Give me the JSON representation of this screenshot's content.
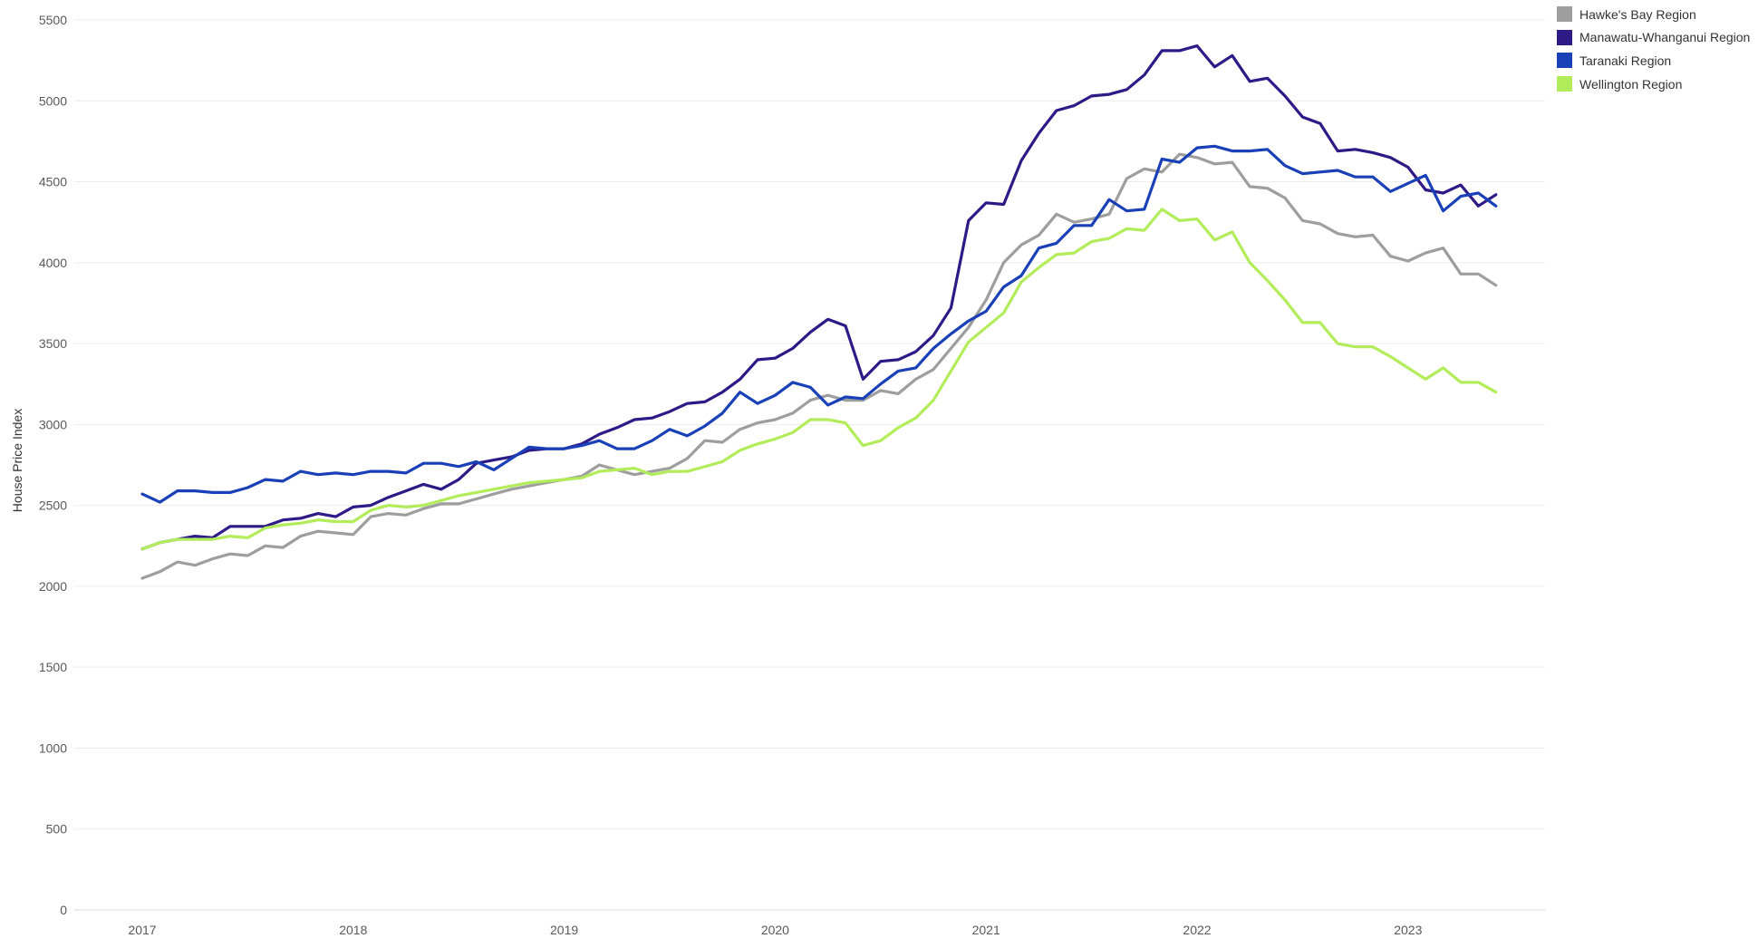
{
  "chart_data": {
    "type": "line",
    "ylabel": "House Price Index",
    "ylim": [
      0,
      5500
    ],
    "y_ticks": [
      0,
      500,
      1000,
      1500,
      2000,
      2500,
      3000,
      3500,
      4000,
      4500,
      5000,
      5500
    ],
    "x_ticks": [
      "2017",
      "2018",
      "2019",
      "2020",
      "2021",
      "2022",
      "2023"
    ],
    "x_start": "2017-01",
    "grid": true,
    "legend_position": "top-right",
    "series": [
      {
        "name": "Hawke's Bay Region",
        "color": "#9e9e9e",
        "values": [
          2050,
          2090,
          2150,
          2130,
          2170,
          2200,
          2190,
          2250,
          2240,
          2310,
          2340,
          2330,
          2320,
          2430,
          2450,
          2440,
          2480,
          2510,
          2510,
          2540,
          2570,
          2600,
          2620,
          2640,
          2660,
          2680,
          2750,
          2720,
          2690,
          2710,
          2730,
          2790,
          2900,
          2890,
          2970,
          3010,
          3030,
          3070,
          3150,
          3180,
          3150,
          3150,
          3210,
          3190,
          3280,
          3340,
          3470,
          3600,
          3770,
          4000,
          4110,
          4170,
          4300,
          4250,
          4270,
          4300,
          4520,
          4580,
          4560,
          4670,
          4650,
          4610,
          4620,
          4470,
          4460,
          4400,
          4260,
          4240,
          4180,
          4160,
          4170,
          4040,
          4010,
          4060,
          4090,
          3930,
          3930,
          3860
        ]
      },
      {
        "name": "Manawatu-Whanganui Region",
        "color": "#2e1a87",
        "values": [
          2230,
          2270,
          2290,
          2310,
          2300,
          2370,
          2370,
          2370,
          2410,
          2420,
          2450,
          2430,
          2490,
          2500,
          2550,
          2590,
          2630,
          2600,
          2660,
          2760,
          2780,
          2800,
          2840,
          2850,
          2850,
          2880,
          2940,
          2980,
          3030,
          3040,
          3080,
          3130,
          3140,
          3200,
          3280,
          3400,
          3410,
          3470,
          3570,
          3650,
          3610,
          3280,
          3390,
          3400,
          3450,
          3550,
          3720,
          4260,
          4370,
          4360,
          4630,
          4800,
          4940,
          4970,
          5030,
          5040,
          5070,
          5160,
          5310,
          5310,
          5340,
          5210,
          5280,
          5120,
          5140,
          5030,
          4900,
          4860,
          4690,
          4700,
          4680,
          4650,
          4590,
          4450,
          4430,
          4480,
          4350,
          4420
        ]
      },
      {
        "name": "Taranaki Region",
        "color": "#1a40b8",
        "values": [
          2570,
          2520,
          2590,
          2590,
          2580,
          2580,
          2610,
          2660,
          2650,
          2710,
          2690,
          2700,
          2690,
          2710,
          2710,
          2700,
          2760,
          2760,
          2740,
          2770,
          2720,
          2790,
          2860,
          2850,
          2850,
          2870,
          2900,
          2850,
          2850,
          2900,
          2970,
          2930,
          2990,
          3070,
          3200,
          3130,
          3180,
          3260,
          3230,
          3120,
          3170,
          3160,
          3250,
          3330,
          3350,
          3470,
          3560,
          3640,
          3700,
          3850,
          3920,
          4090,
          4120,
          4230,
          4230,
          4390,
          4320,
          4330,
          4640,
          4620,
          4710,
          4720,
          4690,
          4690,
          4700,
          4600,
          4550,
          4560,
          4570,
          4530,
          4530,
          4440,
          4490,
          4540,
          4320,
          4410,
          4430,
          4350
        ]
      },
      {
        "name": "Wellington Region",
        "color": "#b3ec5a",
        "values": [
          2230,
          2270,
          2290,
          2290,
          2290,
          2310,
          2300,
          2360,
          2380,
          2390,
          2410,
          2400,
          2400,
          2470,
          2500,
          2490,
          2500,
          2530,
          2560,
          2580,
          2600,
          2620,
          2640,
          2650,
          2660,
          2670,
          2710,
          2720,
          2730,
          2690,
          2710,
          2710,
          2740,
          2770,
          2840,
          2880,
          2910,
          2950,
          3030,
          3030,
          3010,
          2870,
          2900,
          2980,
          3040,
          3150,
          3330,
          3510,
          3600,
          3690,
          3880,
          3970,
          4050,
          4060,
          4130,
          4150,
          4210,
          4200,
          4330,
          4260,
          4270,
          4140,
          4190,
          4000,
          3890,
          3770,
          3630,
          3630,
          3500,
          3480,
          3480,
          3420,
          3350,
          3280,
          3350,
          3260,
          3260,
          3200
        ]
      }
    ]
  }
}
